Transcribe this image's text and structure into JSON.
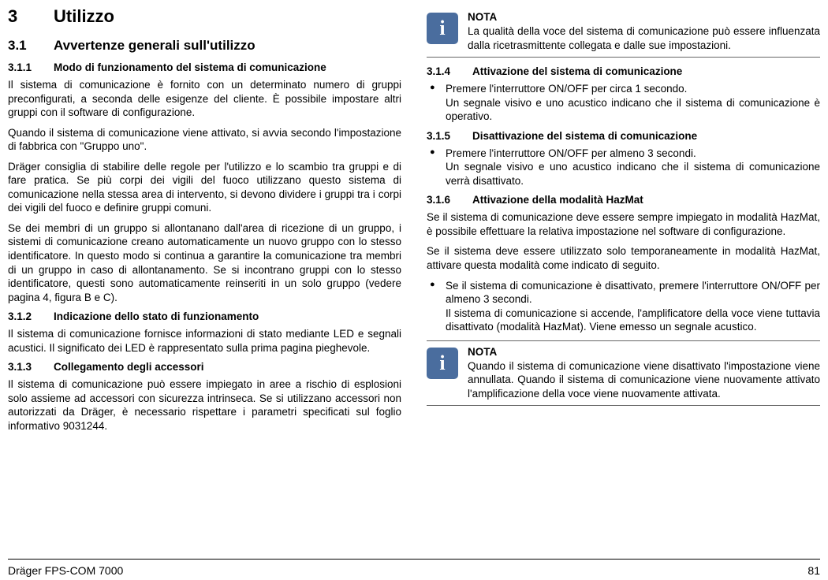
{
  "footer": {
    "product": "Dräger FPS-COM 7000",
    "page": "81"
  },
  "note_label": "NOTA",
  "left": {
    "h1": {
      "num": "3",
      "title": "Utilizzo"
    },
    "h2": {
      "num": "3.1",
      "title": "Avvertenze generali sull'utilizzo"
    },
    "s311": {
      "num": "3.1.1",
      "title": "Modo di funzionamento del sistema di comunicazione",
      "p1": "Il sistema di comunicazione è fornito con un determinato numero di gruppi preconfigurati, a seconda delle esigenze del cliente. È possibile impostare altri gruppi con il software di configurazione.",
      "p2": "Quando il sistema di comunicazione viene attivato, si avvia secondo l'impostazione di fabbrica con \"Gruppo uno\".",
      "p3": "Dräger consiglia di stabilire delle regole per l'utilizzo e lo scambio tra gruppi e di fare pratica. Se più corpi dei vigili del fuoco utilizzano questo sistema di comunicazione nella stessa area di intervento, si devono dividere i gruppi tra i corpi dei vigili del fuoco e definire gruppi comuni.",
      "p4": "Se dei membri di un gruppo si allontanano dall'area di ricezione di un gruppo, i sistemi di comunicazione creano automaticamente un nuovo gruppo con lo stesso identificatore. In questo modo si continua a garantire la comunicazione tra membri di un gruppo in caso di allontanamento. Se si incontrano gruppi con lo stesso identificatore, questi sono automaticamente reinseriti in un solo gruppo (vedere pagina 4, figura B e C)."
    },
    "s312": {
      "num": "3.1.2",
      "title": "Indicazione dello stato di funzionamento",
      "p1": "Il sistema di comunicazione fornisce informazioni di stato mediante LED e segnali acustici. Il significato dei LED è rappresentato sulla prima pagina pieghevole."
    },
    "s313": {
      "num": "3.1.3",
      "title": "Collegamento degli accessori",
      "p1": "Il sistema di comunicazione può essere impiegato in aree a rischio di esplosioni solo assieme ad accessori con sicurezza intrinseca. Se si utilizzano accessori non autorizzati da Dräger, è necessario rispettare i parametri specificati sul foglio informativo 9031244."
    }
  },
  "right": {
    "note1": "La qualità della voce del sistema di comunicazione può essere influenzata dalla ricetrasmittente collegata e dalle sue impostazioni.",
    "s314": {
      "num": "3.1.4",
      "title": "Attivazione del sistema di comunicazione",
      "b1a": "Premere l'interruttore ON/OFF per circa 1 secondo.",
      "b1b": "Un segnale visivo e uno acustico indicano che il sistema di comunicazione è operativo."
    },
    "s315": {
      "num": "3.1.5",
      "title": "Disattivazione del sistema di comunicazione",
      "b1a": "Premere l'interruttore ON/OFF per almeno 3 secondi.",
      "b1b": "Un segnale visivo e uno acustico indicano che il sistema di comunicazione verrà disattivato."
    },
    "s316": {
      "num": "3.1.6",
      "title": "Attivazione della modalità HazMat",
      "p1": "Se il sistema di comunicazione deve essere sempre impiegato in modalità HazMat, è possibile effettuare la relativa impostazione nel software di configurazione.",
      "p2": "Se il sistema deve essere utilizzato solo temporaneamente in modalità HazMat, attivare questa modalità come indicato di seguito.",
      "b1a": "Se il sistema di comunicazione è disattivato, premere l'interruttore ON/OFF per almeno 3 secondi.",
      "b1b": "Il sistema di comunicazione si accende, l'amplificatore della voce viene tuttavia disattivato (modalità HazMat). Viene emesso un segnale acustico."
    },
    "note2": "Quando il sistema di comunicazione viene disattivato l'impostazione viene annullata. Quando il sistema di comunicazione viene nuovamente attivato l'amplificazione della voce viene nuovamente attivata."
  }
}
